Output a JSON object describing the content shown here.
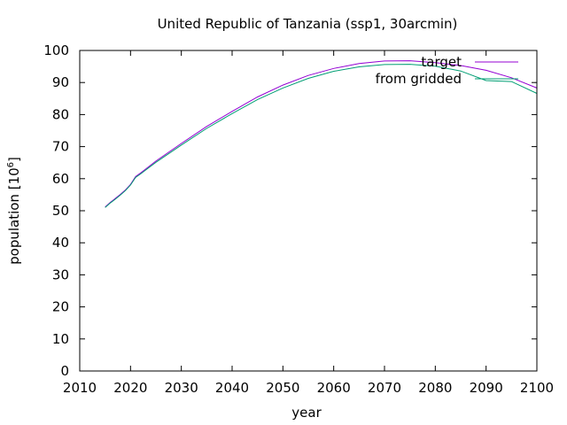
{
  "chart_data": {
    "type": "line",
    "title": "United Republic of Tanzania (ssp1, 30arcmin)",
    "xlabel": "year",
    "ylabel_base": "population [10",
    "ylabel_exp": "6",
    "ylabel_close": "]",
    "xlim": [
      2010,
      2100
    ],
    "ylim": [
      0,
      100
    ],
    "xticks": [
      2010,
      2020,
      2030,
      2040,
      2050,
      2060,
      2070,
      2080,
      2090,
      2100
    ],
    "yticks": [
      0,
      10,
      20,
      30,
      40,
      50,
      60,
      70,
      80,
      90,
      100
    ],
    "grid": false,
    "legend_position": "top-right",
    "series": [
      {
        "name": "target",
        "color": "#9400d3",
        "x": [
          2015,
          2016,
          2017,
          2018,
          2019,
          2020,
          2021,
          2022,
          2023,
          2025,
          2030,
          2035,
          2040,
          2045,
          2050,
          2055,
          2060,
          2065,
          2070,
          2075,
          2080,
          2085,
          2090,
          2095,
          2100
        ],
        "y": [
          51.2,
          52.6,
          53.8,
          55.1,
          56.5,
          58.2,
          60.7,
          61.8,
          63.0,
          65.5,
          71.0,
          76.3,
          81.0,
          85.5,
          89.2,
          92.2,
          94.4,
          95.9,
          96.7,
          96.8,
          96.2,
          95.3,
          93.8,
          91.5,
          88.3
        ]
      },
      {
        "name": "from gridded",
        "color": "#009e73",
        "x": [
          2015,
          2016,
          2017,
          2018,
          2019,
          2020,
          2021,
          2022,
          2023,
          2025,
          2030,
          2035,
          2040,
          2045,
          2050,
          2055,
          2060,
          2065,
          2070,
          2075,
          2080,
          2085,
          2090,
          2095,
          2100
        ],
        "y": [
          51.0,
          52.4,
          53.6,
          54.9,
          56.3,
          58.0,
          60.4,
          61.5,
          62.7,
          65.1,
          70.5,
          75.7,
          80.3,
          84.7,
          88.3,
          91.3,
          93.5,
          94.9,
          95.6,
          95.7,
          95.1,
          93.6,
          90.6,
          90.3,
          86.6
        ]
      }
    ]
  }
}
